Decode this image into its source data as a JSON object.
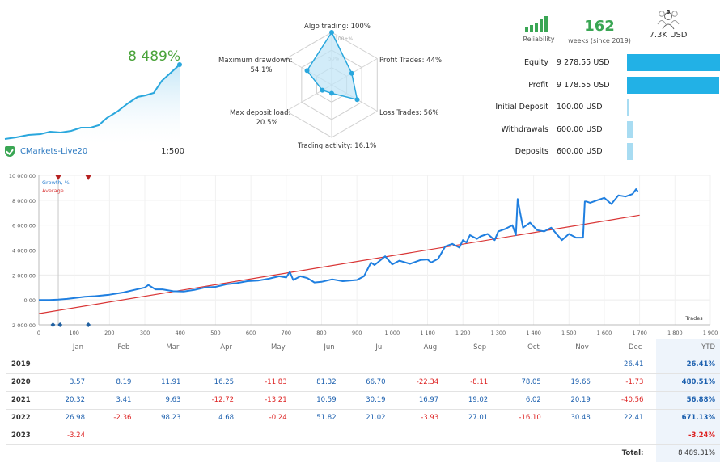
{
  "growth": {
    "percent": "8 489%",
    "account": "ICMarkets-Live20",
    "leverage": "1:500"
  },
  "radar": {
    "labels": {
      "algo": "Algo trading: 100%",
      "profit": "Profit Trades: 44%",
      "loss": "Loss Trades: 56%",
      "activity": "Trading activity: 16.1%",
      "deposit_load": "Max deposit load:",
      "deposit_load_val": "20.5%",
      "drawdown": "Maximum drawdown:",
      "drawdown_val": "54.1%"
    },
    "ring_labels": [
      "100+%",
      "50%"
    ],
    "values": {
      "algo": 1.0,
      "profit": 0.44,
      "loss": 0.56,
      "activity": 0.161,
      "deposit_load": 0.205,
      "drawdown": 0.541
    }
  },
  "stats": {
    "reliability_label": "Reliability",
    "weeks_value": "162",
    "weeks_label": "weeks (since 2019)",
    "subscribers_count": "5",
    "funds_value": "7.3K USD"
  },
  "balance_rows": [
    {
      "label": "Equity",
      "value": "9 278.55 USD",
      "fill": 1.0
    },
    {
      "label": "Profit",
      "value": "9 178.55 USD",
      "fill": 0.99
    },
    {
      "label": "Initial Deposit",
      "value": "100.00 USD",
      "fill": 0.011
    },
    {
      "label": "Withdrawals",
      "value": "600.00 USD",
      "fill": 0.065
    },
    {
      "label": "Deposits",
      "value": "600.00 USD",
      "fill": 0.065
    }
  ],
  "colors": {
    "accent": "#22b1e6",
    "green": "#3aa654",
    "line": "#1f7fe0",
    "average": "#d93535"
  },
  "chart_data": {
    "type": "line",
    "legend": [
      "Growth, %",
      "Average"
    ],
    "xlabel": "Trades",
    "xlim": [
      0,
      1900
    ],
    "ylim": [
      -2000,
      10000
    ],
    "xticks": [
      0,
      100,
      200,
      300,
      400,
      500,
      600,
      700,
      800,
      900,
      1000,
      1100,
      1200,
      1300,
      1400,
      1500,
      1600,
      1700,
      1800,
      1900
    ],
    "xtick_labels": [
      "0",
      "100",
      "200",
      "300",
      "400",
      "500",
      "600",
      "700",
      "800",
      "900",
      "1 000",
      "1 100",
      "1 200",
      "1 300",
      "1 400",
      "1 500",
      "1 600",
      "1 700",
      "1 800",
      "1 900"
    ],
    "yticks": [
      -2000,
      0,
      2000,
      4000,
      6000,
      8000,
      10000
    ],
    "ytick_labels": [
      "-2 000.00",
      "0.00",
      "2 000.00",
      "4 000.00",
      "6 000.00",
      "8 000.00",
      "10 000.00"
    ],
    "series": [
      {
        "name": "Growth, %",
        "x": [
          0,
          30,
          55,
          80,
          100,
          130,
          160,
          200,
          240,
          270,
          300,
          310,
          330,
          350,
          380,
          410,
          440,
          470,
          500,
          530,
          560,
          590,
          620,
          650,
          680,
          700,
          710,
          720,
          740,
          760,
          780,
          800,
          830,
          860,
          900,
          920,
          940,
          950,
          980,
          1000,
          1020,
          1050,
          1080,
          1100,
          1110,
          1130,
          1150,
          1170,
          1190,
          1200,
          1210,
          1220,
          1240,
          1250,
          1270,
          1290,
          1300,
          1320,
          1340,
          1350,
          1355,
          1360,
          1370,
          1390,
          1410,
          1430,
          1450,
          1480,
          1500,
          1520,
          1540,
          1545,
          1550,
          1560,
          1580,
          1600,
          1620,
          1640,
          1660,
          1680,
          1690,
          1695
        ],
        "y": [
          0,
          0,
          30,
          80,
          150,
          250,
          300,
          420,
          600,
          800,
          1000,
          1200,
          850,
          850,
          700,
          680,
          800,
          1000,
          1050,
          1250,
          1350,
          1500,
          1550,
          1700,
          1900,
          1800,
          2250,
          1600,
          1900,
          1750,
          1400,
          1450,
          1650,
          1500,
          1600,
          1900,
          3000,
          2800,
          3500,
          2850,
          3150,
          2900,
          3200,
          3250,
          3000,
          3300,
          4300,
          4500,
          4200,
          4800,
          4600,
          5200,
          4900,
          5100,
          5300,
          4800,
          5500,
          5700,
          6000,
          5200,
          8100,
          7300,
          5800,
          6200,
          5600,
          5500,
          5800,
          4800,
          5300,
          5000,
          5000,
          7900,
          7900,
          7800,
          8000,
          8200,
          7700,
          8400,
          8300,
          8500,
          8900,
          8700
        ]
      },
      {
        "name": "Average",
        "x": [
          0,
          1700
        ],
        "y": [
          -1100,
          6800
        ]
      }
    ],
    "markers_top": [
      55,
      140
    ],
    "markers_bottom": [
      40,
      60,
      140
    ]
  },
  "table": {
    "months": [
      "Jan",
      "Feb",
      "Mar",
      "Apr",
      "May",
      "Jun",
      "Jul",
      "Aug",
      "Sep",
      "Oct",
      "Nov",
      "Dec",
      "YTD"
    ],
    "rows": [
      {
        "year": "2019",
        "values": [
          "",
          "",
          "",
          "",
          "",
          "",
          "",
          "",
          "",
          "",
          "",
          "26.41",
          "26.41%"
        ]
      },
      {
        "year": "2020",
        "values": [
          "3.57",
          "8.19",
          "11.91",
          "16.25",
          "-11.83",
          "81.32",
          "66.70",
          "-22.34",
          "-8.11",
          "78.05",
          "19.66",
          "-1.73",
          "480.51%"
        ]
      },
      {
        "year": "2021",
        "values": [
          "20.32",
          "3.41",
          "9.63",
          "-12.72",
          "-13.21",
          "10.59",
          "30.19",
          "16.97",
          "19.02",
          "6.02",
          "20.19",
          "-40.56",
          "56.88%"
        ]
      },
      {
        "year": "2022",
        "values": [
          "26.98",
          "-2.36",
          "98.23",
          "4.68",
          "-0.24",
          "51.82",
          "21.02",
          "-3.93",
          "27.01",
          "-16.10",
          "30.48",
          "22.41",
          "671.13%"
        ]
      },
      {
        "year": "2023",
        "values": [
          "-3.24",
          "",
          "",
          "",
          "",
          "",
          "",
          "",
          "",
          "",
          "",
          "",
          "-3.24%"
        ]
      }
    ],
    "total_label": "Total:",
    "total_value": "8 489.31%"
  }
}
